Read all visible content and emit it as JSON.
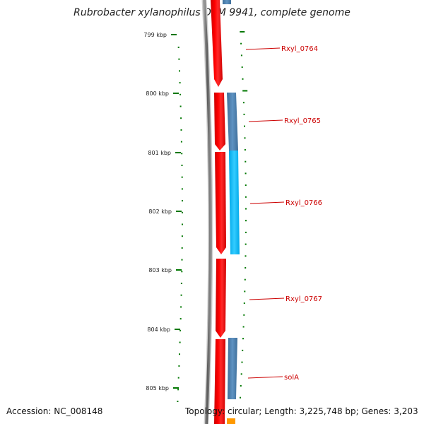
{
  "title": "Rubrobacter xylanophilus DSM 9941, complete genome",
  "footer": {
    "accession": "Accession: NC_008148",
    "topology": "Topology: circular; Length: 3,225,748 bp; Genes: 3,203"
  },
  "kbp_labels": [
    "799 kbp",
    "800 kbp",
    "801 kbp",
    "802 kbp",
    "803 kbp",
    "804 kbp",
    "805 kbp"
  ],
  "genes": [
    {
      "name": "Rxyl_0764"
    },
    {
      "name": "Rxyl_0765"
    },
    {
      "name": "Rxyl_0766"
    },
    {
      "name": "Rxyl_0767"
    },
    {
      "name": "solA"
    }
  ],
  "colors": {
    "cds_red": "#ff0000",
    "cds_red_dark": "#cc0000",
    "steel_blue": "#4682b4",
    "light_blue": "#00bfff",
    "orange": "#ff9900",
    "backbone_gray": "#777777",
    "tick_green": "#007700",
    "label_red": "#cc0000"
  }
}
